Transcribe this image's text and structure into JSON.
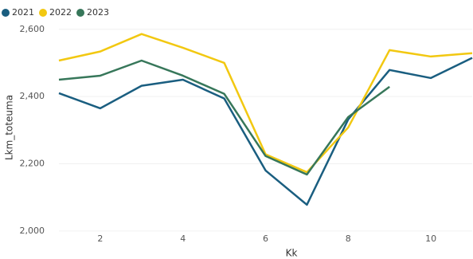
{
  "chart_data": {
    "type": "line",
    "x": [
      1,
      2,
      3,
      4,
      5,
      6,
      7,
      8,
      9,
      10,
      11
    ],
    "series": [
      {
        "name": "2021",
        "color": "#1a5e80",
        "values": [
          2410,
          2365,
          2432,
          2450,
          2394,
          2180,
          2078,
          2332,
          2479,
          2455,
          2515
        ]
      },
      {
        "name": "2022",
        "color": "#f2c811",
        "values": [
          2507,
          2534,
          2586,
          2545,
          2500,
          2228,
          2175,
          2308,
          2538,
          2519,
          2529
        ]
      },
      {
        "name": "2023",
        "color": "#37775a",
        "values": [
          2450,
          2462,
          2507,
          2462,
          2408,
          2223,
          2168,
          2339,
          2429,
          null,
          null
        ]
      }
    ],
    "xlabel": "Kk",
    "ylabel": "Lkm_toteuma",
    "xlim": [
      1,
      11
    ],
    "xticks": [
      2,
      4,
      6,
      8,
      10
    ],
    "ylim": [
      1957,
      2635
    ],
    "yticks": [
      {
        "value": 2000,
        "label": "2,000"
      },
      {
        "value": 2200,
        "label": "2,200"
      },
      {
        "value": 2400,
        "label": "2,400"
      },
      {
        "value": 2600,
        "label": "2,600"
      }
    ],
    "grid": true,
    "legend": "top-left"
  }
}
